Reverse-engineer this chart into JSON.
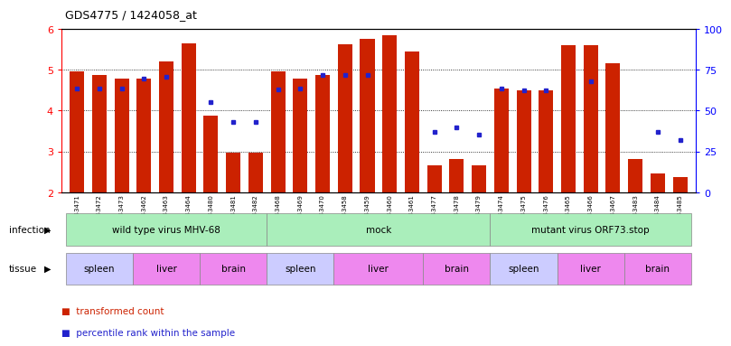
{
  "title": "GDS4775 / 1424058_at",
  "samples": [
    "GSM1243471",
    "GSM1243472",
    "GSM1243473",
    "GSM1243462",
    "GSM1243463",
    "GSM1243464",
    "GSM1243480",
    "GSM1243481",
    "GSM1243482",
    "GSM1243468",
    "GSM1243469",
    "GSM1243470",
    "GSM1243458",
    "GSM1243459",
    "GSM1243460",
    "GSM1243461",
    "GSM1243477",
    "GSM1243478",
    "GSM1243479",
    "GSM1243474",
    "GSM1243475",
    "GSM1243476",
    "GSM1243465",
    "GSM1243466",
    "GSM1243467",
    "GSM1243483",
    "GSM1243484",
    "GSM1243485"
  ],
  "bar_values": [
    4.95,
    4.88,
    4.78,
    4.78,
    5.2,
    5.65,
    3.88,
    2.97,
    2.97,
    4.95,
    4.78,
    4.88,
    5.62,
    5.75,
    5.85,
    5.45,
    2.65,
    2.82,
    2.65,
    4.55,
    4.5,
    4.5,
    5.6,
    5.6,
    5.15,
    2.82,
    2.45,
    2.38
  ],
  "dot_values": [
    4.55,
    4.53,
    4.55,
    4.78,
    4.82,
    null,
    4.2,
    3.72,
    3.72,
    4.52,
    4.55,
    4.88,
    4.88,
    4.88,
    null,
    null,
    3.48,
    3.58,
    3.42,
    4.55,
    4.5,
    4.5,
    null,
    4.72,
    null,
    null,
    3.48,
    3.28
  ],
  "ymin": 2.0,
  "ymax": 6.0,
  "yticks": [
    2,
    3,
    4,
    5,
    6
  ],
  "right_yticks": [
    0,
    25,
    50,
    75,
    100
  ],
  "bar_color": "#CC2200",
  "dot_color": "#2222CC",
  "infection_groups": [
    {
      "label": "wild type virus MHV-68",
      "start": 0,
      "end": 9
    },
    {
      "label": "mock",
      "start": 9,
      "end": 19
    },
    {
      "label": "mutant virus ORF73.stop",
      "start": 19,
      "end": 28
    }
  ],
  "tissue_groups": [
    {
      "label": "spleen",
      "start": 0,
      "end": 3,
      "color": "#CCCCFF"
    },
    {
      "label": "liver",
      "start": 3,
      "end": 6,
      "color": "#EE88EE"
    },
    {
      "label": "brain",
      "start": 6,
      "end": 9,
      "color": "#EE88EE"
    },
    {
      "label": "spleen",
      "start": 9,
      "end": 12,
      "color": "#CCCCFF"
    },
    {
      "label": "liver",
      "start": 12,
      "end": 16,
      "color": "#EE88EE"
    },
    {
      "label": "brain",
      "start": 16,
      "end": 19,
      "color": "#EE88EE"
    },
    {
      "label": "spleen",
      "start": 19,
      "end": 22,
      "color": "#CCCCFF"
    },
    {
      "label": "liver",
      "start": 22,
      "end": 25,
      "color": "#EE88EE"
    },
    {
      "label": "brain",
      "start": 25,
      "end": 28,
      "color": "#EE88EE"
    }
  ],
  "legend_transformed": "transformed count",
  "legend_percentile": "percentile rank within the sample",
  "infection_label": "infection",
  "tissue_label": "tissue",
  "infection_color": "#AAEEBB",
  "bg_color": "#FFFFFF"
}
